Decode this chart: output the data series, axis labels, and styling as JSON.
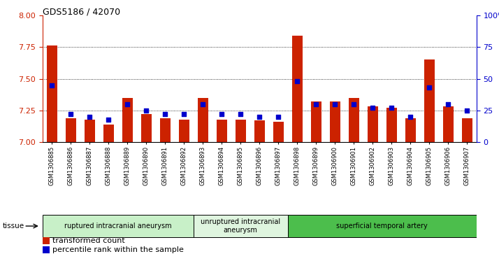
{
  "title": "GDS5186 / 42070",
  "samples": [
    "GSM1306885",
    "GSM1306886",
    "GSM1306887",
    "GSM1306888",
    "GSM1306889",
    "GSM1306890",
    "GSM1306891",
    "GSM1306892",
    "GSM1306893",
    "GSM1306894",
    "GSM1306895",
    "GSM1306896",
    "GSM1306897",
    "GSM1306898",
    "GSM1306899",
    "GSM1306900",
    "GSM1306901",
    "GSM1306902",
    "GSM1306903",
    "GSM1306904",
    "GSM1306905",
    "GSM1306906",
    "GSM1306907"
  ],
  "red_values": [
    7.76,
    7.19,
    7.18,
    7.14,
    7.35,
    7.22,
    7.19,
    7.18,
    7.35,
    7.18,
    7.18,
    7.17,
    7.16,
    7.84,
    7.32,
    7.32,
    7.35,
    7.28,
    7.27,
    7.19,
    7.65,
    7.28,
    7.19
  ],
  "blue_percentiles": [
    45,
    22,
    20,
    18,
    30,
    25,
    22,
    22,
    30,
    22,
    22,
    20,
    20,
    48,
    30,
    30,
    30,
    27,
    27,
    20,
    43,
    30,
    25
  ],
  "ylim_left": [
    7.0,
    8.0
  ],
  "ylim_right": [
    0,
    100
  ],
  "yticks_left": [
    7.0,
    7.25,
    7.5,
    7.75,
    8.0
  ],
  "yticks_right": [
    0,
    25,
    50,
    75,
    100
  ],
  "groups": [
    {
      "label": "ruptured intracranial aneurysm",
      "start": 0,
      "end": 8,
      "color": "#c8f0c8"
    },
    {
      "label": "unruptured intracranial\naneurysm",
      "start": 8,
      "end": 13,
      "color": "#dff5df"
    },
    {
      "label": "superficial temporal artery",
      "start": 13,
      "end": 23,
      "color": "#4cbe4c"
    }
  ],
  "tissue_label": "tissue",
  "legend_red": "transformed count",
  "legend_blue": "percentile rank within the sample",
  "bar_color": "#cc2200",
  "dot_color": "#0000cc",
  "xtick_bg": "#d0d0d0",
  "plot_bg": "#ffffff"
}
